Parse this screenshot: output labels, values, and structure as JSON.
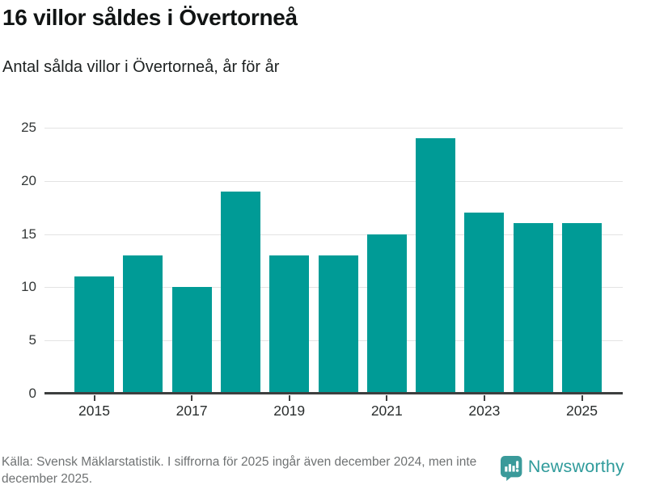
{
  "header": {
    "title": "16 villor såldes i Övertorneå",
    "subtitle": "Antal sålda villor i Övertorneå, år för år"
  },
  "chart_data": {
    "type": "bar",
    "title": "16 villor såldes i Övertorneå",
    "subtitle": "Antal sålda villor i Övertorneå, år för år",
    "categories": [
      "2015",
      "2016",
      "2017",
      "2018",
      "2019",
      "2020",
      "2021",
      "2022",
      "2023",
      "2024",
      "2025"
    ],
    "values": [
      11,
      13,
      10,
      19,
      13,
      13,
      15,
      24,
      17,
      16,
      16
    ],
    "xlabel": "",
    "ylabel": "",
    "ylim": [
      0,
      25
    ],
    "y_ticks": [
      0,
      5,
      10,
      15,
      20,
      25
    ],
    "x_tick_labels": [
      "2015",
      "2017",
      "2019",
      "2021",
      "2023",
      "2025"
    ],
    "grid": true,
    "legend": false,
    "bar_color": "#009b96",
    "gridline_color": "#e3e3e3",
    "axis_color": "#3d3f3f"
  },
  "footer": {
    "source_text": "Källa: Svensk Mäklarstatistik. I siffrorna för 2025 ingår även december 2024, men inte december 2025.",
    "logo_text": "Newsworthy",
    "logo_color": "#3a9a9a",
    "logo_icon": "bar-chart-speech-bubble-icon"
  }
}
